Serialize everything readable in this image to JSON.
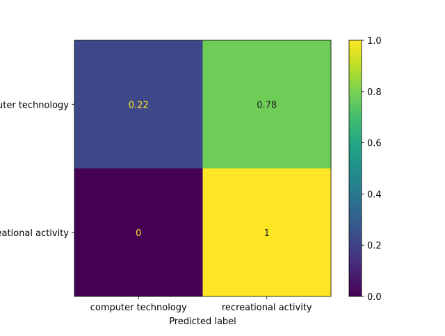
{
  "chart_data": {
    "type": "heatmap",
    "title": "",
    "xlabel": "Predicted label",
    "ylabel": "",
    "x_categories": [
      "computer technology",
      "recreational activity"
    ],
    "y_categories": [
      "computer technology",
      "recreational activity"
    ],
    "values": [
      [
        0.22,
        0.78
      ],
      [
        0,
        1
      ]
    ],
    "value_labels": [
      [
        "0.22",
        "0.78"
      ],
      [
        "0",
        "1"
      ]
    ],
    "colormap": "viridis",
    "colorbar": {
      "range": [
        0.0,
        1.0
      ],
      "ticks": [
        0.0,
        0.2,
        0.4,
        0.6,
        0.8,
        1.0
      ],
      "tick_labels": [
        "0.0",
        "0.2",
        "0.4",
        "0.6",
        "0.8",
        "1.0"
      ]
    },
    "grid": false,
    "legend": "none",
    "colors": {
      "text_on_dark": "#fde725",
      "text_on_light": "#222222"
    }
  }
}
